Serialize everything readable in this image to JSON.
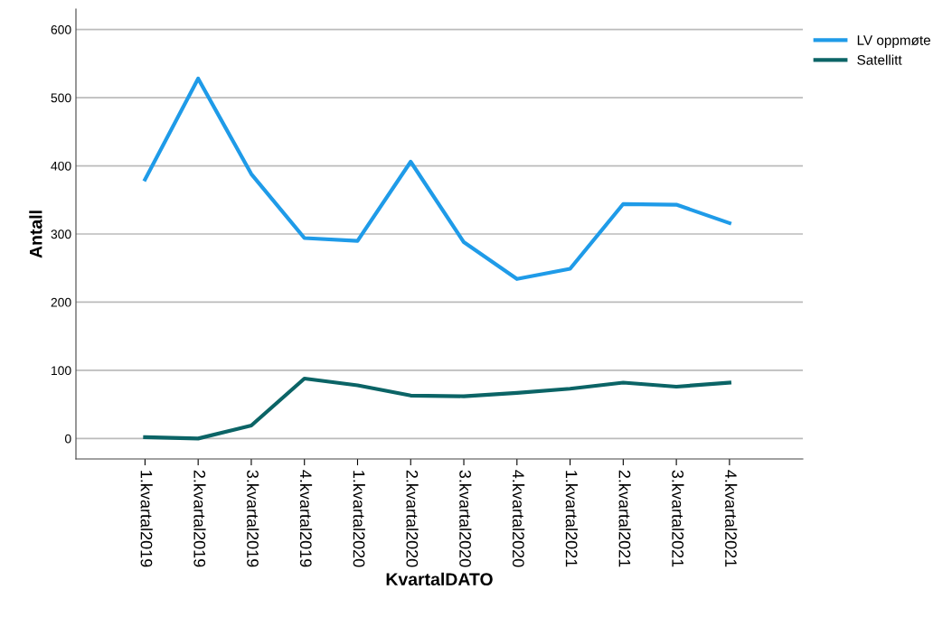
{
  "chart_data": {
    "type": "line",
    "xlabel": "KvartalDATO",
    "ylabel": "Antall",
    "categories": [
      "1.kvartal2019",
      "2.kvartal2019",
      "3.kvartal2019",
      "4.kvartal2019",
      "1.kvartal2020",
      "2.kvartal2020",
      "3.kvartal2020",
      "4.kvartal2020",
      "1.kvartal2021",
      "2.kvartal2021",
      "3.kvartal2021",
      "4.kvartal2021"
    ],
    "series": [
      {
        "name": "LV oppmøte",
        "color": "#1f9be8",
        "values": [
          380,
          528,
          388,
          294,
          290,
          406,
          288,
          234,
          249,
          344,
          343,
          316
        ]
      },
      {
        "name": "Satellitt",
        "color": "#0b6466",
        "values": [
          2,
          0,
          19,
          88,
          78,
          63,
          62,
          67,
          73,
          82,
          76,
          82
        ]
      }
    ],
    "ylim": [
      -30,
      630
    ],
    "yticks": [
      0,
      100,
      200,
      300,
      400,
      500,
      600
    ],
    "grid": "y",
    "legend": "top right",
    "marker": "none",
    "line_style": "solid"
  }
}
